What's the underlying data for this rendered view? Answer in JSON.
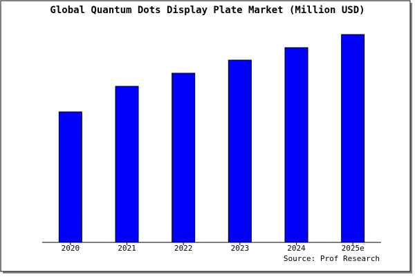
{
  "chart_data": {
    "type": "bar",
    "title": "Global Quantum Dots Display Plate Market (Million USD)",
    "categories": [
      "2020",
      "2021",
      "2022",
      "2023",
      "2024",
      "2025e"
    ],
    "values": [
      189,
      226,
      245,
      264,
      282,
      301
    ],
    "color": "#0000ff",
    "ylim": [
      0,
      303
    ],
    "source": "Source: Prof Research"
  }
}
